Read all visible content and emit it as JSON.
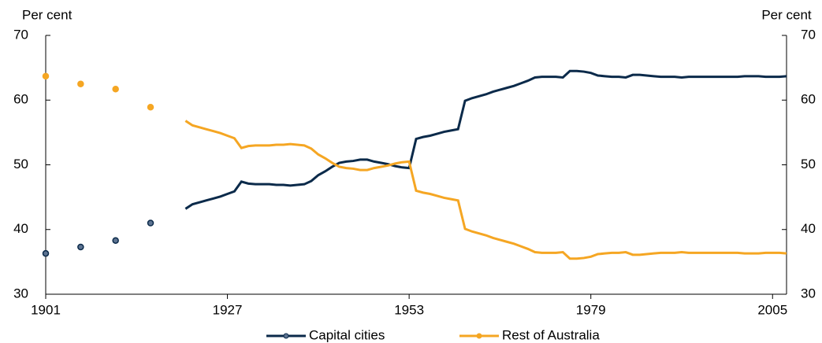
{
  "chart_data": {
    "type": "line",
    "ylabel": "Per cent",
    "y2label": "Per cent",
    "xlim": [
      1901,
      2007
    ],
    "xticks": [
      1901,
      1927,
      1953,
      1979,
      2005
    ],
    "ylim": [
      30,
      70
    ],
    "yticks": [
      30,
      40,
      50,
      60,
      70
    ],
    "y2lim": [
      30,
      70
    ],
    "y2ticks": [
      30,
      40,
      50,
      60,
      70
    ],
    "x_census": [
      1901,
      1906,
      1911,
      1916
    ],
    "x": [
      1921,
      1922,
      1923,
      1924,
      1925,
      1926,
      1927,
      1928,
      1929,
      1930,
      1931,
      1932,
      1933,
      1934,
      1935,
      1936,
      1937,
      1938,
      1939,
      1940,
      1941,
      1942,
      1943,
      1944,
      1945,
      1946,
      1947,
      1948,
      1949,
      1950,
      1951,
      1952,
      1953,
      1954,
      1955,
      1956,
      1957,
      1958,
      1959,
      1960,
      1961,
      1962,
      1963,
      1964,
      1965,
      1966,
      1967,
      1968,
      1969,
      1970,
      1971,
      1972,
      1973,
      1974,
      1975,
      1976,
      1977,
      1978,
      1979,
      1980,
      1981,
      1982,
      1983,
      1984,
      1985,
      1986,
      1987,
      1988,
      1989,
      1990,
      1991,
      1992,
      1993,
      1994,
      1995,
      1996,
      1997,
      1998,
      1999,
      2000,
      2001,
      2002,
      2003,
      2004,
      2005,
      2006,
      2007
    ],
    "series": [
      {
        "name": "Capital cities",
        "color": "#0b2a4a",
        "census_values": [
          36.3,
          37.3,
          38.3,
          41.0
        ],
        "values": [
          43.2,
          43.9,
          44.2,
          44.5,
          44.8,
          45.1,
          45.5,
          45.9,
          47.4,
          47.1,
          47.0,
          47.0,
          47.0,
          46.9,
          46.9,
          46.8,
          46.9,
          47.0,
          47.5,
          48.4,
          49.0,
          49.7,
          50.3,
          50.5,
          50.6,
          50.8,
          50.8,
          50.5,
          50.3,
          50.1,
          49.8,
          49.6,
          49.5,
          54.0,
          54.3,
          54.5,
          54.8,
          55.1,
          55.3,
          55.5,
          59.9,
          60.3,
          60.6,
          60.9,
          61.3,
          61.6,
          61.9,
          62.2,
          62.6,
          63.0,
          63.5,
          63.6,
          63.6,
          63.6,
          63.5,
          64.5,
          64.5,
          64.4,
          64.2,
          63.8,
          63.7,
          63.6,
          63.6,
          63.5,
          63.9,
          63.9,
          63.8,
          63.7,
          63.6,
          63.6,
          63.6,
          63.5,
          63.6,
          63.6,
          63.6,
          63.6,
          63.6,
          63.6,
          63.6,
          63.6,
          63.7,
          63.7,
          63.7,
          63.6,
          63.6,
          63.6,
          63.7
        ]
      },
      {
        "name": "Rest of Australia",
        "color": "#f5a623",
        "census_values": [
          63.7,
          62.5,
          61.7,
          58.9
        ],
        "values": [
          56.8,
          56.1,
          55.8,
          55.5,
          55.2,
          54.9,
          54.5,
          54.1,
          52.6,
          52.9,
          53.0,
          53.0,
          53.0,
          53.1,
          53.1,
          53.2,
          53.1,
          53.0,
          52.5,
          51.6,
          51.0,
          50.3,
          49.7,
          49.5,
          49.4,
          49.2,
          49.2,
          49.5,
          49.7,
          49.9,
          50.2,
          50.4,
          50.5,
          46.0,
          45.7,
          45.5,
          45.2,
          44.9,
          44.7,
          44.5,
          40.1,
          39.7,
          39.4,
          39.1,
          38.7,
          38.4,
          38.1,
          37.8,
          37.4,
          37.0,
          36.5,
          36.4,
          36.4,
          36.4,
          36.5,
          35.5,
          35.5,
          35.6,
          35.8,
          36.2,
          36.3,
          36.4,
          36.4,
          36.5,
          36.1,
          36.1,
          36.2,
          36.3,
          36.4,
          36.4,
          36.4,
          36.5,
          36.4,
          36.4,
          36.4,
          36.4,
          36.4,
          36.4,
          36.4,
          36.4,
          36.3,
          36.3,
          36.3,
          36.4,
          36.4,
          36.4,
          36.3
        ]
      }
    ]
  }
}
